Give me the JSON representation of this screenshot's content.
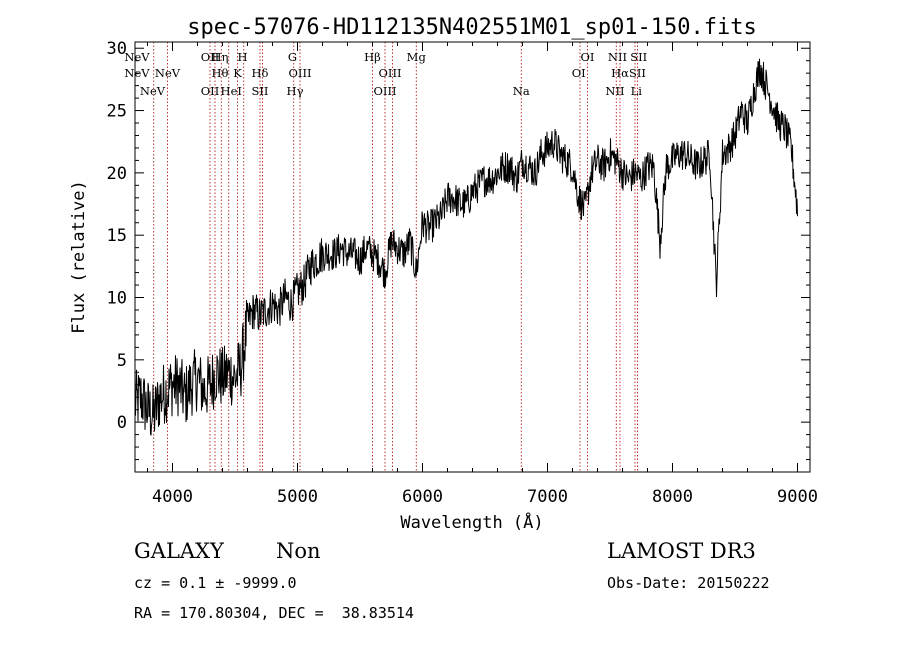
{
  "chart_data": {
    "type": "line",
    "title": "spec-57076-HD112135N402551M01_sp01-150.fits",
    "xlabel": "Wavelength (Å)",
    "ylabel": "Flux (relative)",
    "xlim": [
      3700,
      9100
    ],
    "ylim": [
      -4,
      30.5
    ],
    "xticks": [
      4000,
      5000,
      6000,
      7000,
      8000,
      9000
    ],
    "yticks": [
      0,
      5,
      10,
      15,
      20,
      25,
      30
    ],
    "series": [
      {
        "name": "flux",
        "x": [
          3700,
          3750,
          3800,
          3850,
          3900,
          3950,
          4000,
          4050,
          4100,
          4150,
          4200,
          4250,
          4300,
          4350,
          4400,
          4450,
          4500,
          4550,
          4600,
          4650,
          4700,
          4750,
          4800,
          4850,
          4900,
          4950,
          5000,
          5050,
          5100,
          5150,
          5200,
          5250,
          5300,
          5350,
          5400,
          5450,
          5500,
          5550,
          5600,
          5650,
          5700,
          5750,
          5800,
          5850,
          5900,
          5950,
          6000,
          6050,
          6100,
          6150,
          6200,
          6250,
          6300,
          6350,
          6400,
          6450,
          6500,
          6550,
          6600,
          6650,
          6700,
          6750,
          6800,
          6850,
          6900,
          6950,
          7000,
          7050,
          7100,
          7150,
          7200,
          7250,
          7300,
          7350,
          7400,
          7450,
          7500,
          7550,
          7600,
          7650,
          7700,
          7750,
          7800,
          7850,
          7900,
          7950,
          8000,
          8050,
          8100,
          8150,
          8200,
          8250,
          8300,
          8350,
          8400,
          8450,
          8500,
          8550,
          8600,
          8650,
          8700,
          8750,
          8800,
          8850,
          8900,
          8950,
          9000
        ],
        "y": [
          1.5,
          2.0,
          1.0,
          0.5,
          2.0,
          2.5,
          3.0,
          3.0,
          2.0,
          3.0,
          3.5,
          2.5,
          3.0,
          4.0,
          3.5,
          4.0,
          3.5,
          4.5,
          8.0,
          9.0,
          8.5,
          9.0,
          9.5,
          9.0,
          10.0,
          9.5,
          10.5,
          11.0,
          12.5,
          13.0,
          13.5,
          13.5,
          13.5,
          14.0,
          13.5,
          13.5,
          13.0,
          14.0,
          13.5,
          13.0,
          12.0,
          14.5,
          14.0,
          13.5,
          14.5,
          12.0,
          16.0,
          15.5,
          16.0,
          16.5,
          18.0,
          18.0,
          17.5,
          17.5,
          18.5,
          19.0,
          19.5,
          19.5,
          20.0,
          20.5,
          20.5,
          19.5,
          21.0,
          20.5,
          20.0,
          21.5,
          22.0,
          22.5,
          21.5,
          21.0,
          20.5,
          18.0,
          17.0,
          20.0,
          21.0,
          20.5,
          21.5,
          21.0,
          20.0,
          19.5,
          20.0,
          19.5,
          20.5,
          20.5,
          14.5,
          20.5,
          21.0,
          21.5,
          21.5,
          21.0,
          20.5,
          21.0,
          21.5,
          11.0,
          21.5,
          22.0,
          23.0,
          25.0,
          24.0,
          26.5,
          28.5,
          27.0,
          25.5,
          24.0,
          23.5,
          22.0,
          17.0
        ]
      }
    ],
    "lines": [
      {
        "name": "NeV",
        "wavelength": 3346,
        "row": 1
      },
      {
        "name": "NeV",
        "wavelength": 3426,
        "row": 2
      },
      {
        "name": "NeV",
        "wavelength": 3840,
        "row": 3
      },
      {
        "name": "NeV",
        "wavelength": 3960,
        "row": 2
      },
      {
        "name": "OII",
        "wavelength": 4300,
        "row": 1
      },
      {
        "name": "OII",
        "wavelength": 4300,
        "row": 3
      },
      {
        "name": "Hη",
        "wavelength": 4380,
        "row": 1
      },
      {
        "name": "Hθ",
        "wavelength": 4380,
        "row": 2
      },
      {
        "name": "HeI",
        "wavelength": 4470,
        "row": 3
      },
      {
        "name": "H",
        "wavelength": 4560,
        "row": 1
      },
      {
        "name": "K",
        "wavelength": 4520,
        "row": 2
      },
      {
        "name": "Hδ",
        "wavelength": 4700,
        "row": 2
      },
      {
        "name": "SII",
        "wavelength": 4700,
        "row": 3
      },
      {
        "name": "G",
        "wavelength": 4960,
        "row": 1
      },
      {
        "name": "OIII",
        "wavelength": 5020,
        "row": 2
      },
      {
        "name": "Hγ",
        "wavelength": 4980,
        "row": 3
      },
      {
        "name": "Hβ",
        "wavelength": 5600,
        "row": 1
      },
      {
        "name": "OIII",
        "wavelength": 5740,
        "row": 2
      },
      {
        "name": "OIII",
        "wavelength": 5700,
        "row": 3
      },
      {
        "name": "Mg",
        "wavelength": 5950,
        "row": 1
      },
      {
        "name": "Na",
        "wavelength": 6790,
        "row": 3
      },
      {
        "name": "OI",
        "wavelength": 7320,
        "row": 1
      },
      {
        "name": "OI",
        "wavelength": 7250,
        "row": 2
      },
      {
        "name": "NII",
        "wavelength": 7560,
        "row": 1
      },
      {
        "name": "Hα",
        "wavelength": 7580,
        "row": 2
      },
      {
        "name": "NII",
        "wavelength": 7540,
        "row": 3
      },
      {
        "name": "SII",
        "wavelength": 7730,
        "row": 1
      },
      {
        "name": "SII",
        "wavelength": 7720,
        "row": 2
      },
      {
        "name": "Li",
        "wavelength": 7710,
        "row": 3
      }
    ],
    "line_marker_wavelengths": [
      3850,
      3960,
      4300,
      4340,
      4390,
      4450,
      4520,
      4570,
      4700,
      4720,
      4970,
      5020,
      5600,
      5700,
      5760,
      5950,
      6790,
      7260,
      7320,
      7550,
      7580,
      7700,
      7720
    ],
    "line_color": "#b00000"
  },
  "info": {
    "object_class": "GALAXY",
    "subclass": "Non",
    "survey": "LAMOST DR3",
    "cz_line": "cz = 0.1 ± -9999.0",
    "obs_date_line": "Obs-Date: 20150222",
    "coords_line": "RA = 170.80304, DEC =  38.83514"
  }
}
